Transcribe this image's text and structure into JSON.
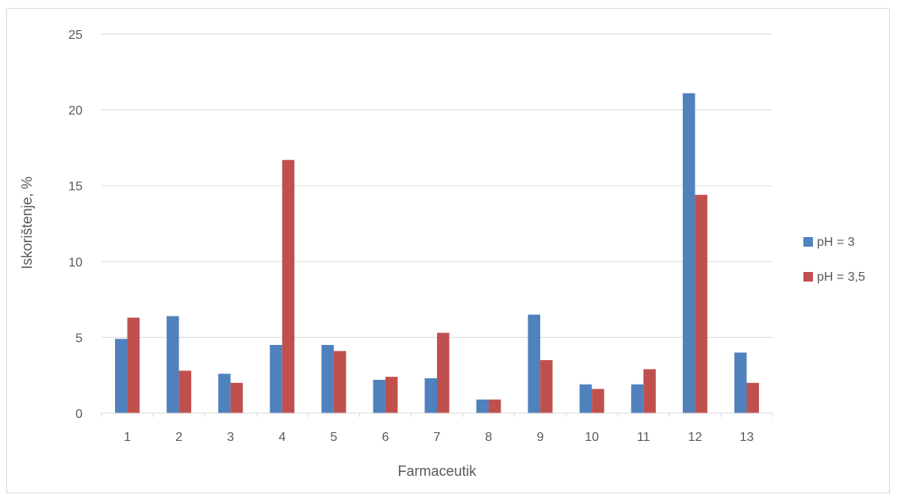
{
  "chart_data": {
    "type": "bar",
    "title": "",
    "xlabel": "Farmaceutik",
    "ylabel": "Iskorištenje, %",
    "ylim": [
      0,
      25
    ],
    "yticks": [
      "0",
      "5",
      "10",
      "15",
      "20",
      "25"
    ],
    "grid": true,
    "legend_position": "right",
    "categories": [
      "1",
      "2",
      "3",
      "4",
      "5",
      "6",
      "7",
      "8",
      "9",
      "10",
      "11",
      "12",
      "13"
    ],
    "series": [
      {
        "name": "pH = 3",
        "color": "#4f81bd",
        "values": [
          4.9,
          6.4,
          2.6,
          4.5,
          4.5,
          2.2,
          2.3,
          0.9,
          6.5,
          1.9,
          1.9,
          21.1,
          4.0
        ]
      },
      {
        "name": "pH = 3,5",
        "color": "#c0504d",
        "values": [
          6.3,
          2.8,
          2.0,
          16.7,
          4.1,
          2.4,
          5.3,
          0.9,
          3.5,
          1.6,
          2.9,
          14.4,
          2.0
        ]
      }
    ]
  }
}
